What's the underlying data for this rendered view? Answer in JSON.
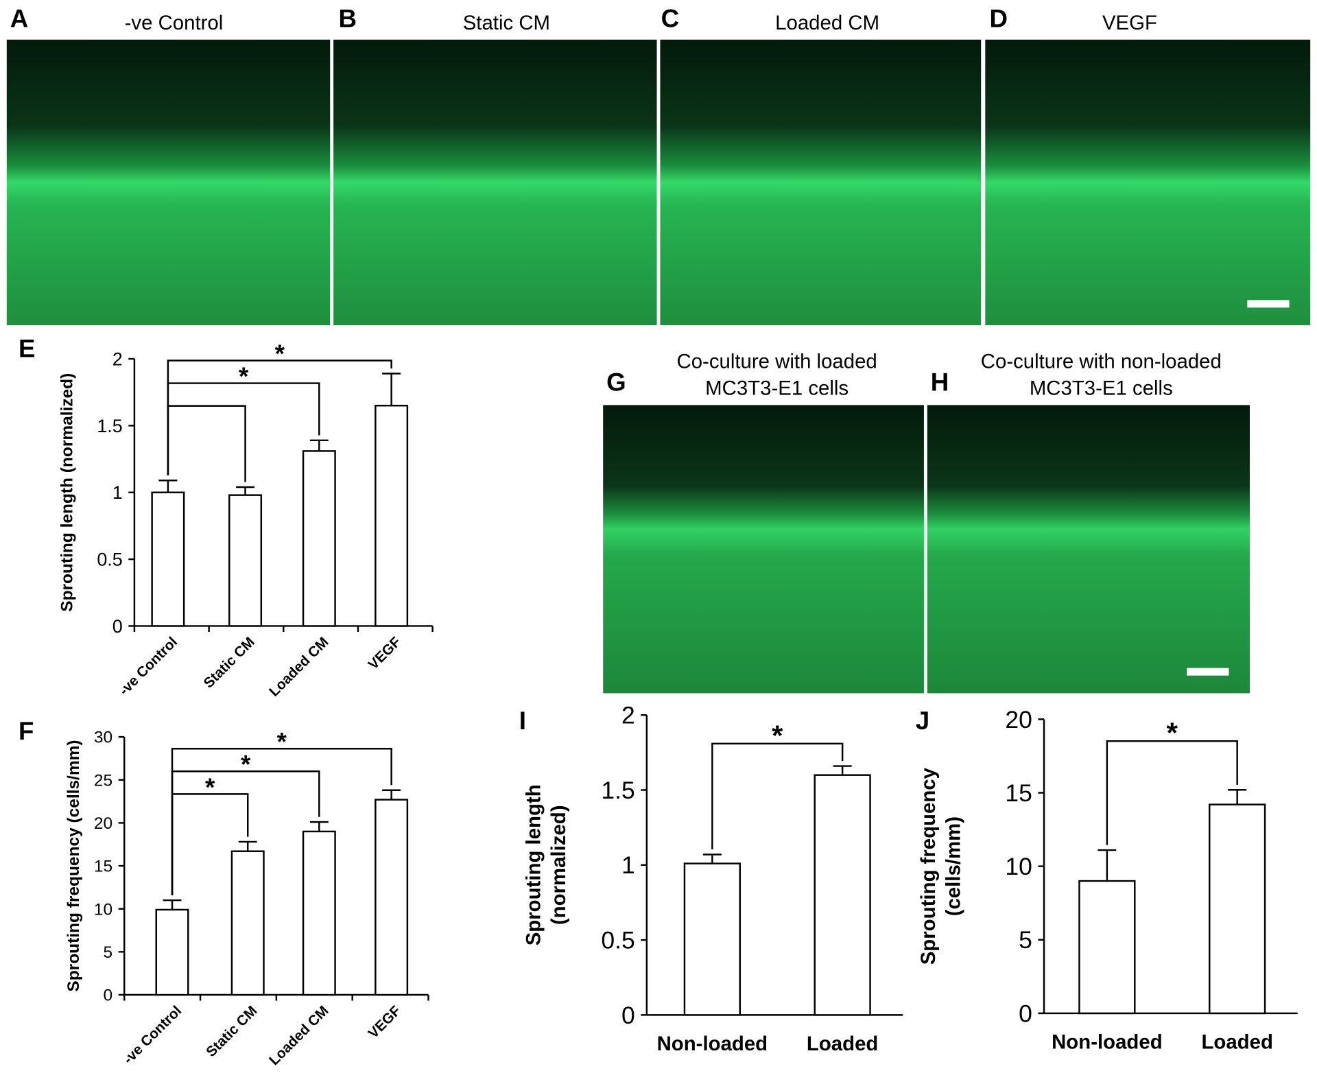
{
  "panels": [
    {
      "label": "A",
      "title": "-ve Control"
    },
    {
      "label": "B",
      "title": "Static CM"
    },
    {
      "label": "C",
      "title": "Loaded CM"
    },
    {
      "label": "D",
      "title": "VEGF"
    },
    {
      "label": "G",
      "title": [
        "Co-culture with loaded",
        "MC3T3-E1 cells"
      ]
    },
    {
      "label": "H",
      "title": [
        "Co-culture with non-loaded",
        "MC3T3-E1 cells"
      ]
    }
  ],
  "chart_data": [
    {
      "type": "bar",
      "panel": "E",
      "y_label": [
        "Sprouting length (normalized)"
      ],
      "categories": [
        "-ve Control",
        "Static CM",
        "Loaded CM",
        "VEGF"
      ],
      "values": [
        1.0,
        0.98,
        1.31,
        1.65
      ],
      "errors": [
        0.09,
        0.06,
        0.08,
        0.24
      ],
      "color": "#ffffff",
      "ylim": [
        0,
        2
      ],
      "yticks": [
        0,
        0.5,
        1,
        1.5,
        2
      ],
      "brackets": [
        {
          "from": 0,
          "to": 1
        },
        {
          "from": 0,
          "to": 2,
          "label": "*"
        },
        {
          "from": 0,
          "to": 3,
          "label": "*"
        }
      ]
    },
    {
      "type": "bar",
      "panel": "F",
      "y_label": [
        "Sprouting frequency (cells/mm)"
      ],
      "categories": [
        "-ve Control",
        "Static CM",
        "Loaded CM",
        "VEGF"
      ],
      "values": [
        9.9,
        16.7,
        19.0,
        22.7
      ],
      "errors": [
        1.1,
        1.1,
        1.1,
        1.1
      ],
      "color": "#ffffff",
      "ylim": [
        0,
        30
      ],
      "yticks": [
        0,
        5,
        10,
        15,
        20,
        25,
        30
      ],
      "brackets": [
        {
          "from": 0,
          "to": 1,
          "label": "*"
        },
        {
          "from": 0,
          "to": 2,
          "label": "*"
        },
        {
          "from": 0,
          "to": 3,
          "label": "*"
        }
      ]
    },
    {
      "type": "bar",
      "panel": "I",
      "y_label": [
        "Sprouting length",
        "(normalized)"
      ],
      "categories": [
        "Non-loaded",
        "Loaded"
      ],
      "values": [
        1.01,
        1.6
      ],
      "errors": [
        0.06,
        0.06
      ],
      "color": "#ffffff",
      "ylim": [
        0,
        2
      ],
      "yticks": [
        0,
        0.5,
        1,
        1.5,
        2
      ],
      "brackets": [
        {
          "from": 0,
          "to": 1,
          "label": "*"
        }
      ]
    },
    {
      "type": "bar",
      "panel": "J",
      "y_label": [
        "Sprouting frequency",
        "(cells/mm)"
      ],
      "categories": [
        "Non-loaded",
        "Loaded"
      ],
      "values": [
        9.0,
        14.2
      ],
      "errors": [
        2.1,
        1.0
      ],
      "color": "#ffffff",
      "ylim": [
        0,
        20
      ],
      "yticks": [
        0,
        5,
        10,
        15,
        20
      ],
      "brackets": [
        {
          "from": 0,
          "to": 1,
          "label": "*"
        }
      ]
    }
  ]
}
